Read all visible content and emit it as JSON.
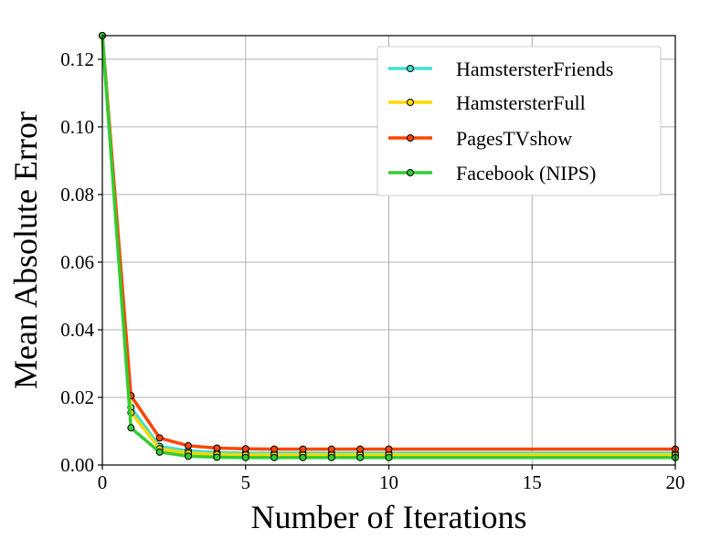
{
  "chart_data": {
    "type": "line",
    "xlabel": "Number of Iterations",
    "ylabel": "Mean Absolute Error",
    "xlim": [
      0,
      20
    ],
    "ylim": [
      0,
      0.127
    ],
    "xticks": [
      0,
      5,
      10,
      15,
      20
    ],
    "xtick_labels": [
      "0",
      "5",
      "10",
      "15",
      "20"
    ],
    "yticks": [
      0,
      0.02,
      0.04,
      0.06,
      0.08,
      0.1,
      0.12
    ],
    "ytick_labels": [
      "0.00",
      "0.02",
      "0.04",
      "0.06",
      "0.08",
      "0.10",
      "0.12"
    ],
    "grid": true,
    "legend_position": "top-right",
    "x": [
      0,
      1,
      2,
      3,
      4,
      5,
      6,
      7,
      8,
      9,
      10,
      20
    ],
    "series": [
      {
        "name": "HamstersterFriends",
        "color": "#40e0d0",
        "values": [
          0.127,
          0.017,
          0.0055,
          0.0042,
          0.0037,
          0.0035,
          0.0035,
          0.0035,
          0.0035,
          0.0035,
          0.0035,
          0.0035
        ]
      },
      {
        "name": "HamstersterFull",
        "color": "#ffd700",
        "values": [
          0.127,
          0.0155,
          0.0048,
          0.0035,
          0.0031,
          0.003,
          0.003,
          0.003,
          0.003,
          0.003,
          0.003,
          0.003
        ]
      },
      {
        "name": "PagesTVshow",
        "color": "#ff4500",
        "values": [
          0.127,
          0.0205,
          0.008,
          0.0057,
          0.005,
          0.0048,
          0.0047,
          0.0047,
          0.0047,
          0.0047,
          0.0047,
          0.0047
        ]
      },
      {
        "name": "Facebook (NIPS)",
        "color": "#32cd32",
        "values": [
          0.127,
          0.011,
          0.0038,
          0.0026,
          0.0023,
          0.0022,
          0.0022,
          0.0022,
          0.0022,
          0.0022,
          0.0022,
          0.0022
        ]
      }
    ]
  }
}
